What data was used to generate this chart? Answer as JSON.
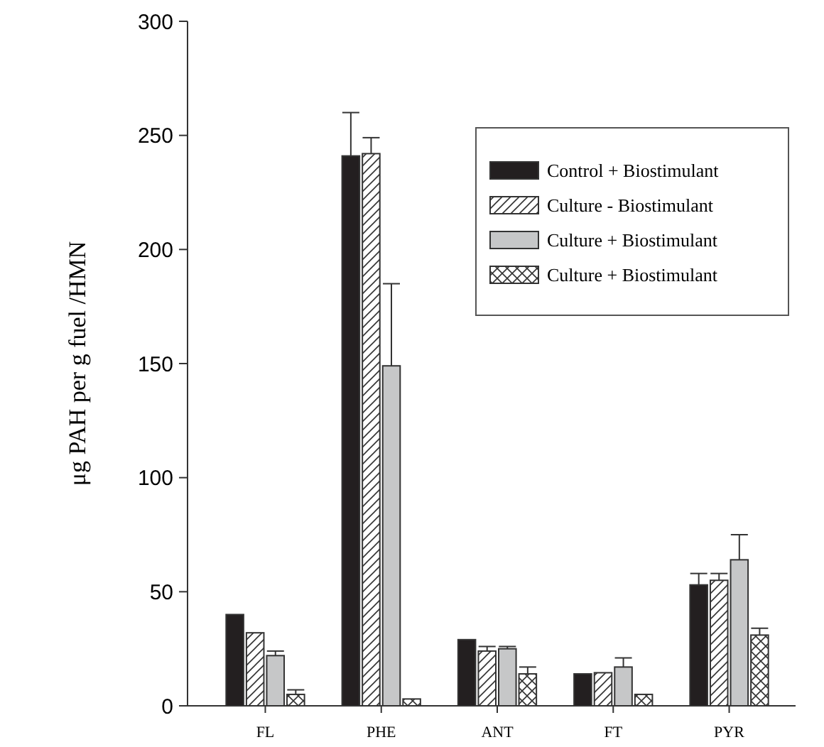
{
  "chart_data": {
    "type": "bar",
    "ylabel": "μg PAH per g fuel /HMN",
    "categories": [
      "FL",
      "PHE",
      "ANT",
      "FT",
      "PYR"
    ],
    "ylim": [
      0,
      300
    ],
    "yticks": [
      0,
      50,
      100,
      150,
      200,
      250,
      300
    ],
    "grid": false,
    "legend": "top right",
    "series": [
      {
        "name": "Control + Biostimulant",
        "color": "#231f20",
        "values": [
          40,
          241,
          29,
          14,
          53
        ],
        "errors": [
          null,
          [
            241,
            260
          ],
          null,
          null,
          [
            53,
            58
          ]
        ]
      },
      {
        "name": "Culture - Biostimulant",
        "color": "#333333",
        "values": [
          32,
          242,
          24,
          14.5,
          55
        ],
        "errors": [
          null,
          [
            242,
            249
          ],
          [
            24,
            26
          ],
          null,
          [
            55,
            58
          ]
        ]
      },
      {
        "name": "Culture + Biostimulant",
        "color": "#c6c7c8",
        "values": [
          22,
          149,
          25,
          17,
          64
        ],
        "errors": [
          [
            22,
            24
          ],
          [
            149,
            185
          ],
          [
            25,
            26
          ],
          [
            17,
            21
          ],
          [
            64,
            75
          ]
        ]
      },
      {
        "name": "Culture + Biostimulant",
        "color": "#333333",
        "values": [
          5,
          3,
          14,
          5,
          31
        ],
        "errors": [
          [
            5,
            7
          ],
          null,
          [
            14,
            17
          ],
          null,
          [
            31,
            34
          ]
        ]
      }
    ]
  }
}
